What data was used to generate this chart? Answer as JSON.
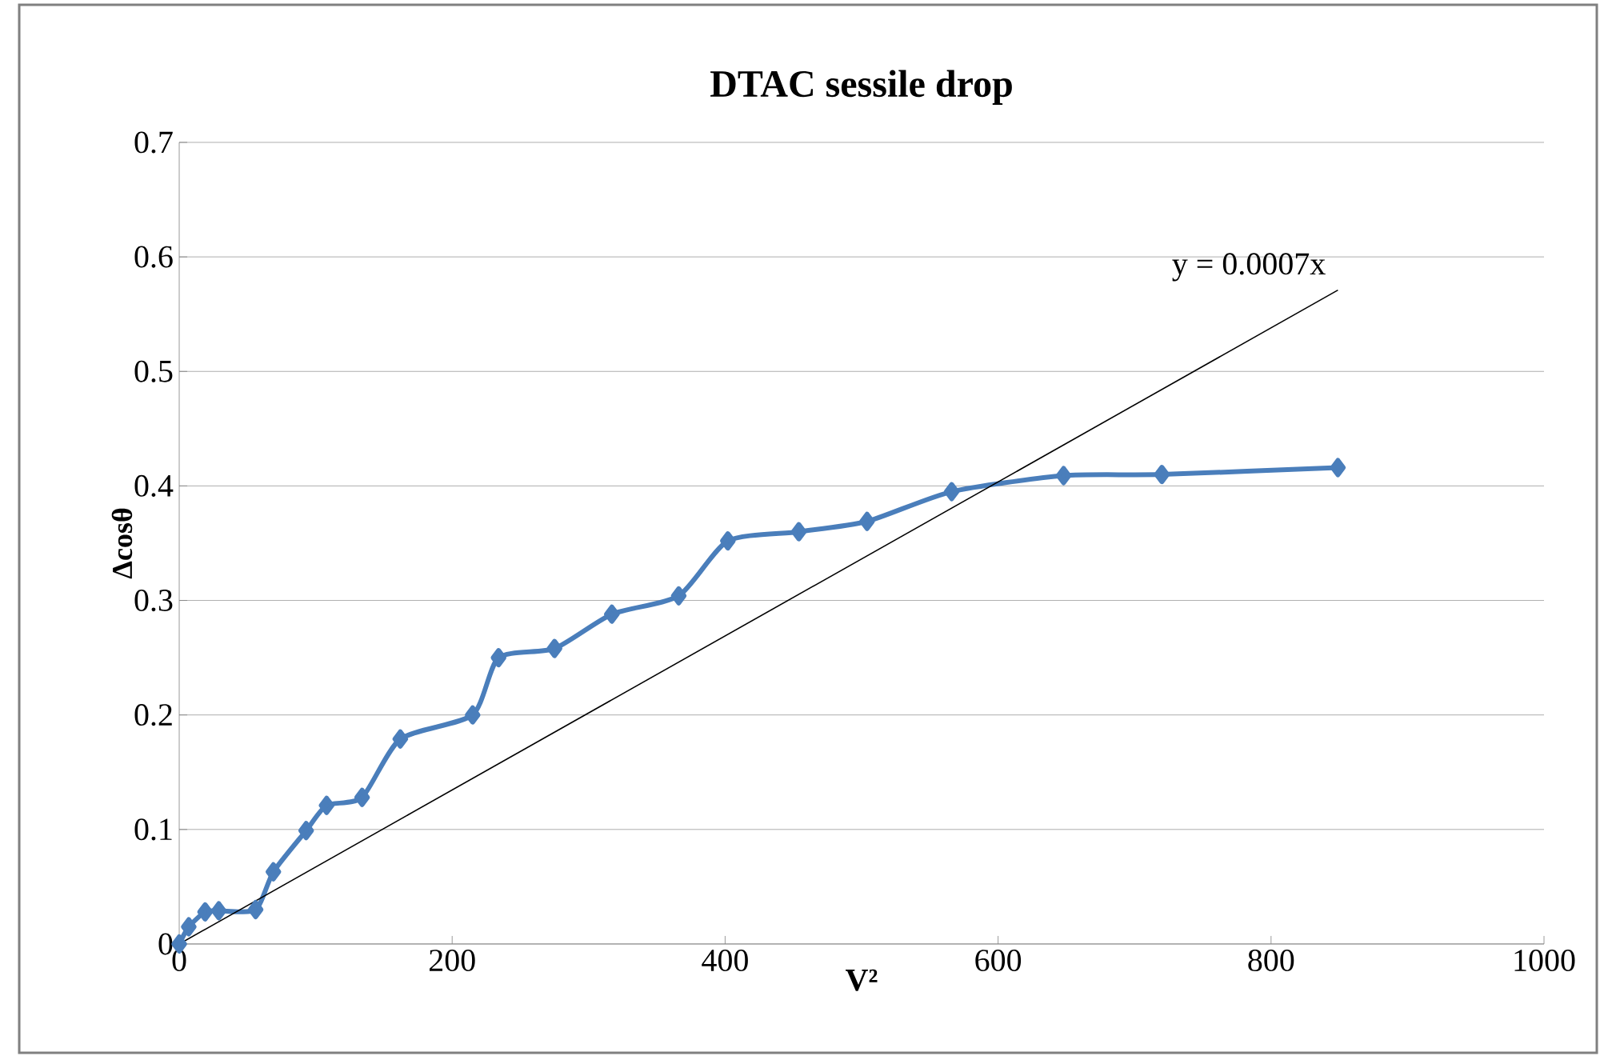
{
  "chart_data": {
    "type": "line",
    "title": "DTAC  sessile drop",
    "xlabel": "V²",
    "ylabel": "Δcosθ",
    "xlim": [
      0,
      1000
    ],
    "ylim": [
      0,
      0.7
    ],
    "xticks": [
      0,
      200,
      400,
      600,
      800,
      1000
    ],
    "yticks": [
      0,
      0.1,
      0.2,
      0.3,
      0.4,
      0.5,
      0.6,
      0.7
    ],
    "grid": "y",
    "marker": "diamond",
    "line_style": "solid",
    "series": [
      {
        "color": "#4a7ebb",
        "x": [
          0,
          7,
          19,
          29,
          56,
          69,
          93,
          108,
          134,
          162,
          215,
          234,
          275,
          317,
          366,
          402,
          454,
          504,
          566,
          648,
          720,
          849
        ],
        "values": [
          0,
          0.015,
          0.028,
          0.029,
          0.03,
          0.063,
          0.099,
          0.121,
          0.128,
          0.179,
          0.2,
          0.25,
          0.258,
          0.288,
          0.304,
          0.352,
          0.36,
          0.369,
          0.395,
          0.409,
          0.41,
          0.416
        ]
      },
      {
        "type": "line",
        "marker": "none",
        "color": "#000000",
        "x": [
          0,
          849
        ],
        "values": [
          0,
          0.571
        ]
      }
    ],
    "annotations": [
      "y = 0.0007x"
    ]
  }
}
